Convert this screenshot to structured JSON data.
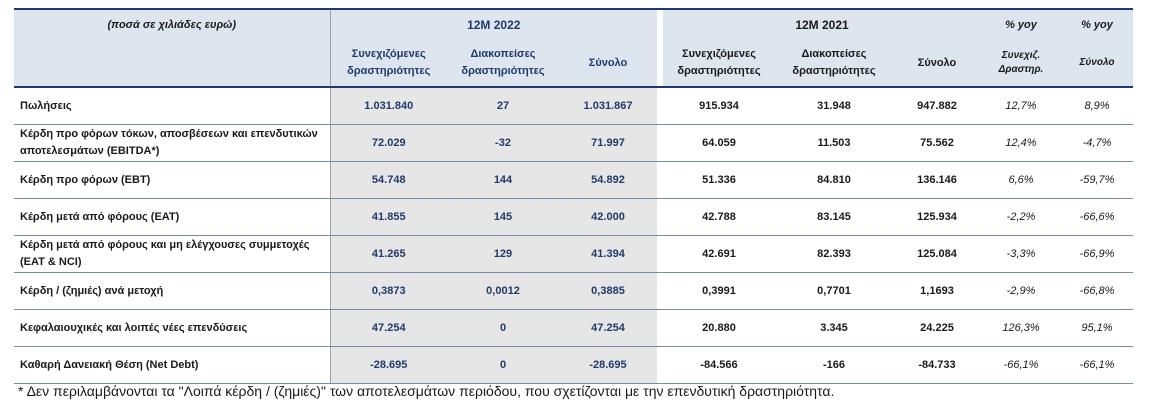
{
  "header": {
    "note": "(ποσά σε χιλιάδες ευρώ)",
    "period_2022": "12M 2022",
    "period_2021": "12M 2021",
    "yoy_1": "% yoy",
    "yoy_2": "% yoy"
  },
  "columns": {
    "c2022": [
      "Συνεχιζόμενες δραστηριότητες",
      "Διακοπείσες δραστηριότητες",
      "Σύνολο"
    ],
    "c2021": [
      "Συνεχιζόμενες δραστηριότητες",
      "Διακοπείσες δραστηριότητες",
      "Σύνολο"
    ],
    "pct1_line1": "Συνεχιζ.",
    "pct1_line2": "Δραστηρ.",
    "pct2": "Σύνολο"
  },
  "rows": [
    {
      "label": "Πωλήσεις",
      "v22": [
        "1.031.840",
        "27",
        "1.031.867"
      ],
      "v21": [
        "915.934",
        "31.948",
        "947.882"
      ],
      "pct": [
        "12,7%",
        "8,9%"
      ]
    },
    {
      "label": "Κέρδη προ φόρων τόκων, αποσβέσεων και επενδυτικών αποτελεσμάτων (EBITDA*)",
      "v22": [
        "72.029",
        "-32",
        "71.997"
      ],
      "v21": [
        "64.059",
        "11.503",
        "75.562"
      ],
      "pct": [
        "12,4%",
        "-4,7%"
      ]
    },
    {
      "label": "Κέρδη προ φόρων (EBT)",
      "v22": [
        "54.748",
        "144",
        "54.892"
      ],
      "v21": [
        "51.336",
        "84.810",
        "136.146"
      ],
      "pct": [
        "6,6%",
        "-59,7%"
      ]
    },
    {
      "label": "Κέρδη μετά από φόρους (EAT)",
      "v22": [
        "41.855",
        "145",
        "42.000"
      ],
      "v21": [
        "42.788",
        "83.145",
        "125.934"
      ],
      "pct": [
        "-2,2%",
        "-66,6%"
      ]
    },
    {
      "label": "Κέρδη μετά από φόρους και μη ελέγχουσες συμμετοχές (EAT & NCI)",
      "v22": [
        "41.265",
        "129",
        "41.394"
      ],
      "v21": [
        "42.691",
        "82.393",
        "125.084"
      ],
      "pct": [
        "-3,3%",
        "-66,9%"
      ]
    },
    {
      "label": "Κέρδη / (ζημιές) ανά μετοχή",
      "v22": [
        "0,3873",
        "0,0012",
        "0,3885"
      ],
      "v21": [
        "0,3991",
        "0,7701",
        "1,1693"
      ],
      "pct": [
        "-2,9%",
        "-66,8%"
      ]
    },
    {
      "label": "Κεφαλαιουχικές και λοιπές νέες επενδύσεις",
      "v22": [
        "47.254",
        "0",
        "47.254"
      ],
      "v21": [
        "20.880",
        "3.345",
        "24.225"
      ],
      "pct": [
        "126,3%",
        "95,1%"
      ]
    },
    {
      "label": "Καθαρή Δανειακή Θέση (Net Debt)",
      "v22": [
        "-28.695",
        "0",
        "-28.695"
      ],
      "v21": [
        "-84.566",
        "-166",
        "-84.733"
      ],
      "pct": [
        "-66,1%",
        "-66,1%"
      ]
    }
  ],
  "footnote": "* Δεν περιλαμβάνονται τα \"Λοιπά κέρδη / (ζημιές)\" των αποτελεσμάτων περιόδου, που σχετίζονται με την επενδυτική δραστηριότητα.",
  "colors": {
    "header_bg": "#dde5ef",
    "shade_2022": "#e6e6e6",
    "accent_blue": "#1f3a6b"
  }
}
